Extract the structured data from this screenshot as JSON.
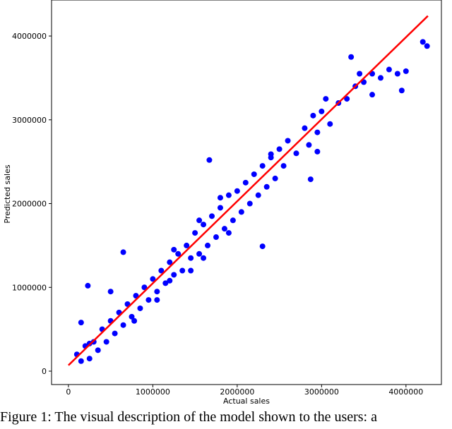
{
  "chart_data": {
    "type": "scatter",
    "xlabel": "Actual sales",
    "ylabel": "Predicted sales",
    "xlim": [
      -200000,
      4420000
    ],
    "ylim": [
      -160000,
      4430000
    ],
    "xticks": [
      0,
      1000000,
      2000000,
      3000000,
      4000000
    ],
    "yticks": [
      0,
      1000000,
      2000000,
      3000000,
      4000000
    ],
    "series": [
      {
        "type": "scatter",
        "color": "#0000ff",
        "x": [
          100000,
          150000,
          200000,
          250000,
          300000,
          350000,
          400000,
          450000,
          500000,
          550000,
          600000,
          650000,
          700000,
          750000,
          800000,
          850000,
          900000,
          950000,
          1000000,
          1050000,
          1100000,
          1150000,
          1200000,
          1250000,
          1300000,
          1350000,
          1400000,
          1450000,
          1500000,
          1550000,
          1600000,
          1650000,
          1700000,
          1750000,
          1800000,
          1850000,
          1900000,
          1950000,
          2000000,
          2050000,
          2100000,
          2150000,
          2200000,
          2250000,
          2300000,
          2350000,
          2400000,
          2450000,
          2500000,
          2550000,
          2600000,
          2700000,
          2800000,
          2850000,
          2900000,
          2950000,
          3000000,
          3100000,
          3200000,
          3300000,
          3400000,
          3500000,
          3600000,
          3700000,
          3800000,
          3900000,
          4000000,
          4200000,
          4250000,
          3350000,
          3050000,
          230000,
          650000,
          1670000,
          2300000,
          2870000,
          1800000,
          500000,
          150000,
          250000,
          2400000,
          3450000,
          3950000,
          3600000,
          2950000,
          1050000,
          780000,
          1200000,
          1450000,
          1600000,
          1900000,
          1550000,
          1250000
        ],
        "values": [
          200000,
          120000,
          300000,
          150000,
          350000,
          250000,
          500000,
          350000,
          600000,
          450000,
          700000,
          550000,
          800000,
          650000,
          900000,
          750000,
          1000000,
          850000,
          1100000,
          950000,
          1200000,
          1050000,
          1300000,
          1150000,
          1400000,
          1200000,
          1500000,
          1350000,
          1650000,
          1400000,
          1750000,
          1500000,
          1850000,
          1600000,
          1950000,
          1700000,
          2100000,
          1800000,
          2150000,
          1900000,
          2250000,
          2000000,
          2350000,
          2100000,
          2450000,
          2200000,
          2550000,
          2300000,
          2650000,
          2450000,
          2750000,
          2600000,
          2900000,
          2700000,
          3050000,
          2850000,
          3100000,
          2950000,
          3200000,
          3250000,
          3400000,
          3450000,
          3550000,
          3500000,
          3600000,
          3550000,
          3580000,
          3930000,
          3880000,
          3750000,
          3250000,
          1020000,
          1420000,
          2520000,
          1490000,
          2290000,
          2070000,
          950000,
          580000,
          330000,
          2590000,
          3550000,
          3350000,
          3300000,
          2620000,
          850000,
          600000,
          1080000,
          1200000,
          1350000,
          1650000,
          1800000,
          1450000
        ]
      },
      {
        "type": "line",
        "color": "#ff0000",
        "x": [
          0,
          4260000
        ],
        "values": [
          70000,
          4240000
        ]
      }
    ]
  },
  "caption": "Figure 1: The visual description of the model shown to the users: a"
}
